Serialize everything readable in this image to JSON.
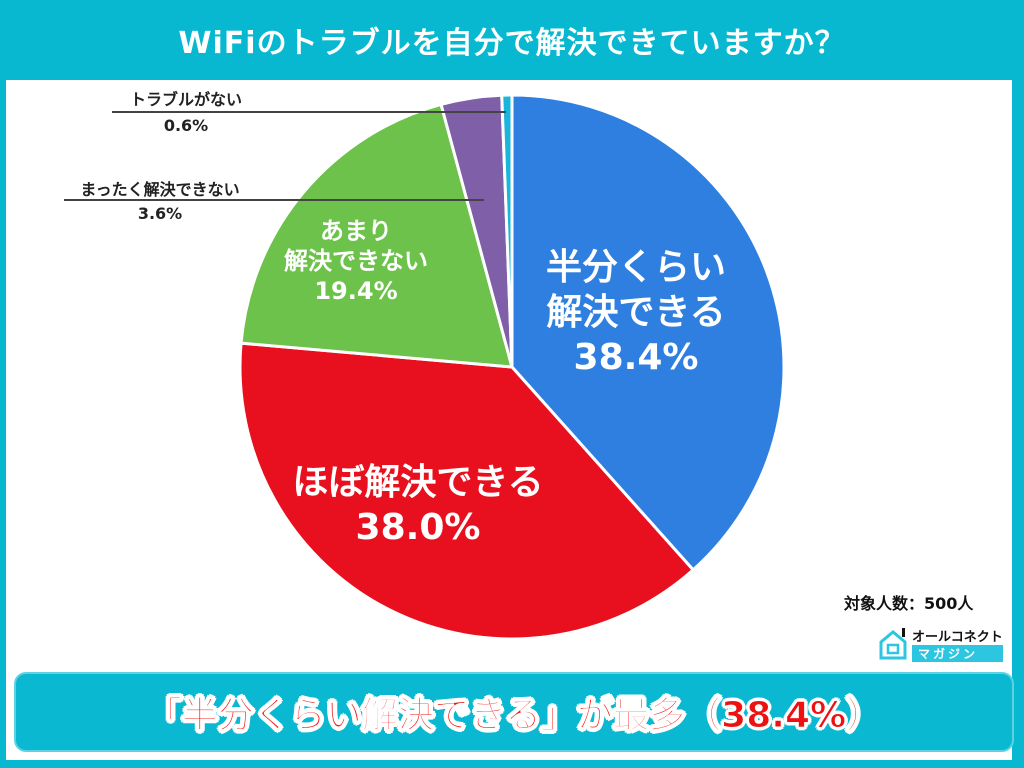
{
  "title": "WiFiのトラブルを自分で解決できていますか？",
  "chart_data": {
    "type": "pie",
    "title": "WiFiのトラブルを自分で解決できていますか？",
    "categories": [
      "半分くらい解決できる",
      "ほぼ解決できる",
      "あまり解決できない",
      "まったく解決できない",
      "トラブルがない"
    ],
    "values": [
      38.4,
      38.0,
      19.4,
      3.6,
      0.6
    ],
    "colors": [
      "#2f7fe0",
      "#e8101e",
      "#6cc24a",
      "#7e5fa8",
      "#19b5dc"
    ],
    "start_angle": "12 o'clock, clockwise",
    "sample_size": 500
  },
  "labels": {
    "half": {
      "l1": "半分くらい",
      "l2": "解決できる",
      "pct": "38.4%"
    },
    "almost": {
      "l1": "ほぼ解決できる",
      "pct": "38.0%"
    },
    "rarely": {
      "l1": "あまり",
      "l2": "解決できない",
      "pct": "19.4%"
    },
    "never": {
      "l1": "まったく解決できない",
      "pct": "3.6%"
    },
    "none": {
      "l1": "トラブルがない",
      "pct": "0.6%"
    }
  },
  "count": "対象人数：500人",
  "logo": {
    "top": "オールコネクト",
    "bottom": "マガジン"
  },
  "banner": "「半分くらい解決できる」が最多（38.4%）"
}
